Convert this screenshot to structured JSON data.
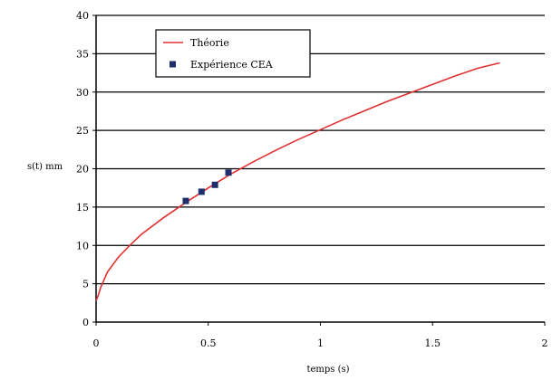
{
  "chart_data": {
    "type": "line",
    "xlabel": "temps (s)",
    "ylabel": "s(t) mm",
    "xlim": [
      0,
      2
    ],
    "ylim": [
      0,
      40
    ],
    "x_ticks": [
      0,
      0.5,
      1,
      1.5,
      2
    ],
    "x_tick_labels": [
      "0",
      "0.5",
      "1",
      "1.5",
      "2"
    ],
    "y_ticks": [
      0,
      5,
      10,
      15,
      20,
      25,
      30,
      35,
      40
    ],
    "y_tick_labels": [
      "0",
      "5",
      "10",
      "15",
      "20",
      "25",
      "30",
      "35",
      "40"
    ],
    "grid": "horizontal",
    "legend_position": "top-center",
    "series": [
      {
        "name": "Théorie",
        "kind": "line",
        "color": "#e03030",
        "x": [
          0,
          0.01,
          0.02,
          0.05,
          0.1,
          0.15,
          0.2,
          0.3,
          0.4,
          0.5,
          0.6,
          0.7,
          0.8,
          0.9,
          1.0,
          1.1,
          1.2,
          1.3,
          1.4,
          1.5,
          1.6,
          1.7,
          1.8
        ],
        "y": [
          2.8,
          3.5,
          4.5,
          6.5,
          8.5,
          10.0,
          11.4,
          13.6,
          15.6,
          17.5,
          19.3,
          20.9,
          22.4,
          23.8,
          25.1,
          26.4,
          27.6,
          28.8,
          29.9,
          31.0,
          32.1,
          33.1,
          33.8
        ]
      },
      {
        "name": "Expérience CEA",
        "kind": "scatter",
        "color": "#1f2f6e",
        "x": [
          0.4,
          0.47,
          0.53,
          0.59
        ],
        "y": [
          15.8,
          17.0,
          17.9,
          19.5
        ]
      }
    ]
  }
}
